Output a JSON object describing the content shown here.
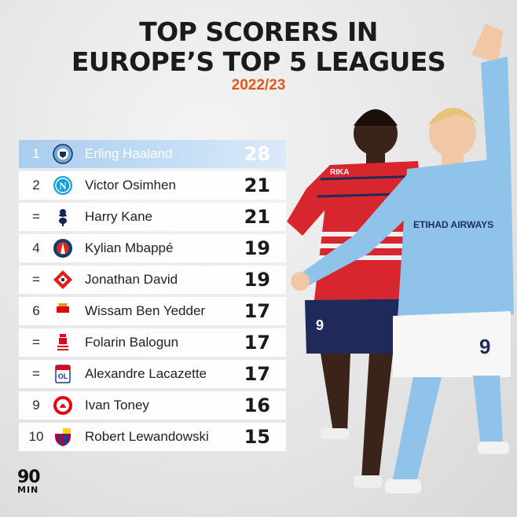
{
  "header": {
    "title_line1": "TOP SCORERS IN",
    "title_line2": "EUROPE’S TOP 5 LEAGUES",
    "season": "2022/23"
  },
  "colors": {
    "accent": "#e2591f",
    "highlight_row": "#b7d6f2",
    "city_blue": "#8fc3ea",
    "lille_red": "#d7262e"
  },
  "rows": [
    {
      "rank": "1",
      "club_icon": "man-city-crest-icon",
      "name": "Erling Haaland",
      "goals": "28"
    },
    {
      "rank": "2",
      "club_icon": "napoli-crest-icon",
      "name": "Victor Osimhen",
      "goals": "21"
    },
    {
      "rank": "=",
      "club_icon": "tottenham-crest-icon",
      "name": "Harry Kane",
      "goals": "21"
    },
    {
      "rank": "4",
      "club_icon": "psg-crest-icon",
      "name": "Kylian Mbappé",
      "goals": "19"
    },
    {
      "rank": "=",
      "club_icon": "lille-crest-icon",
      "name": "Jonathan David",
      "goals": "19"
    },
    {
      "rank": "6",
      "club_icon": "monaco-crest-icon",
      "name": "Wissam Ben Yedder",
      "goals": "17"
    },
    {
      "rank": "=",
      "club_icon": "reims-crest-icon",
      "name": "Folarin Balogun",
      "goals": "17"
    },
    {
      "rank": "=",
      "club_icon": "lyon-crest-icon",
      "name": "Alexandre Lacazette",
      "goals": "17"
    },
    {
      "rank": "9",
      "club_icon": "brentford-crest-icon",
      "name": "Ivan Toney",
      "goals": "16"
    },
    {
      "rank": "10",
      "club_icon": "barcelona-crest-icon",
      "name": "Robert Lewandowski",
      "goals": "15"
    }
  ],
  "brand": {
    "logo_top": "90",
    "logo_bottom": "MIN"
  },
  "artwork": {
    "haaland_shirt_text": "ETIHAD AIRWAYS",
    "haaland_number": "9",
    "david_shirt_text": "RIKA",
    "david_number": "9"
  }
}
